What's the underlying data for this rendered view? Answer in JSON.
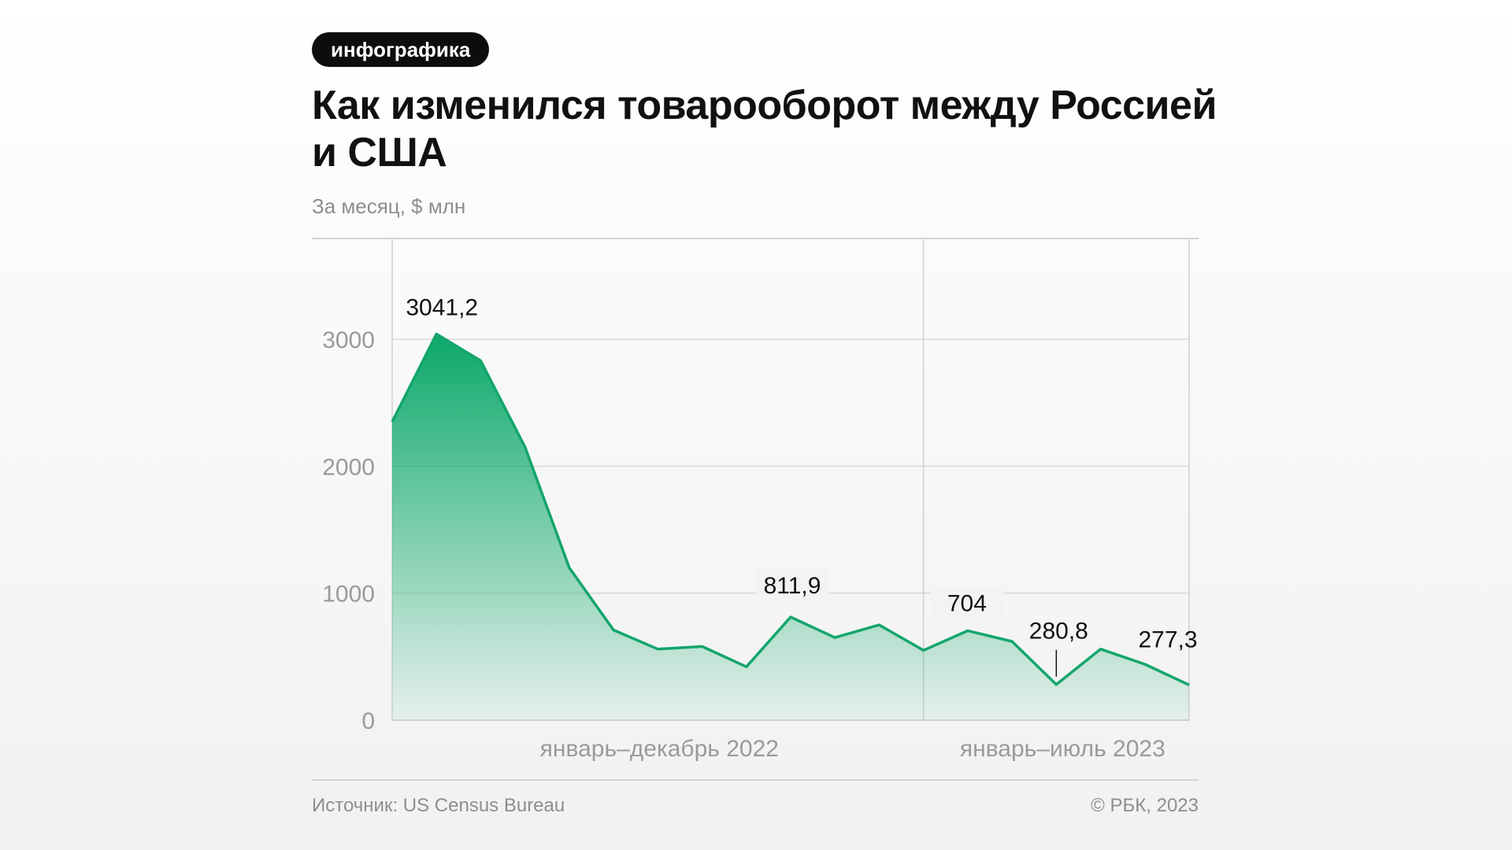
{
  "badge": "инфографика",
  "title": "Как изменился товарооборот между Россией и США",
  "subtitle": "За месяц, $ млн",
  "source": "Источник: US Census Bureau",
  "copyright": "© РБК, 2023",
  "colors": {
    "line": "#14a56c",
    "fill_top": "#0ba86a",
    "grid": "#d8d8d8"
  },
  "chart_data": {
    "type": "area",
    "title": "Как изменился товарооборот между Россией и США",
    "ylabel": "За месяц, $ млн",
    "ylim": [
      0,
      3800
    ],
    "yticks": [
      0,
      1000,
      2000,
      3000
    ],
    "grid": true,
    "period_labels": [
      "январь–декабрь 2022",
      "январь–июль 2023"
    ],
    "series": [
      {
        "name": "Товарооборот",
        "values": [
          2350,
          3041.2,
          2830,
          2150,
          1200,
          710,
          560,
          580,
          420,
          811.9,
          650,
          750,
          550,
          704,
          620,
          280.8,
          560,
          440,
          277.3
        ]
      }
    ],
    "annotations": [
      {
        "index": 1,
        "text": "3041,2"
      },
      {
        "index": 9,
        "text": "811,9"
      },
      {
        "index": 13,
        "text": "704"
      },
      {
        "index": 15,
        "text": "280,8"
      },
      {
        "index": 18,
        "text": "277,3"
      }
    ]
  }
}
